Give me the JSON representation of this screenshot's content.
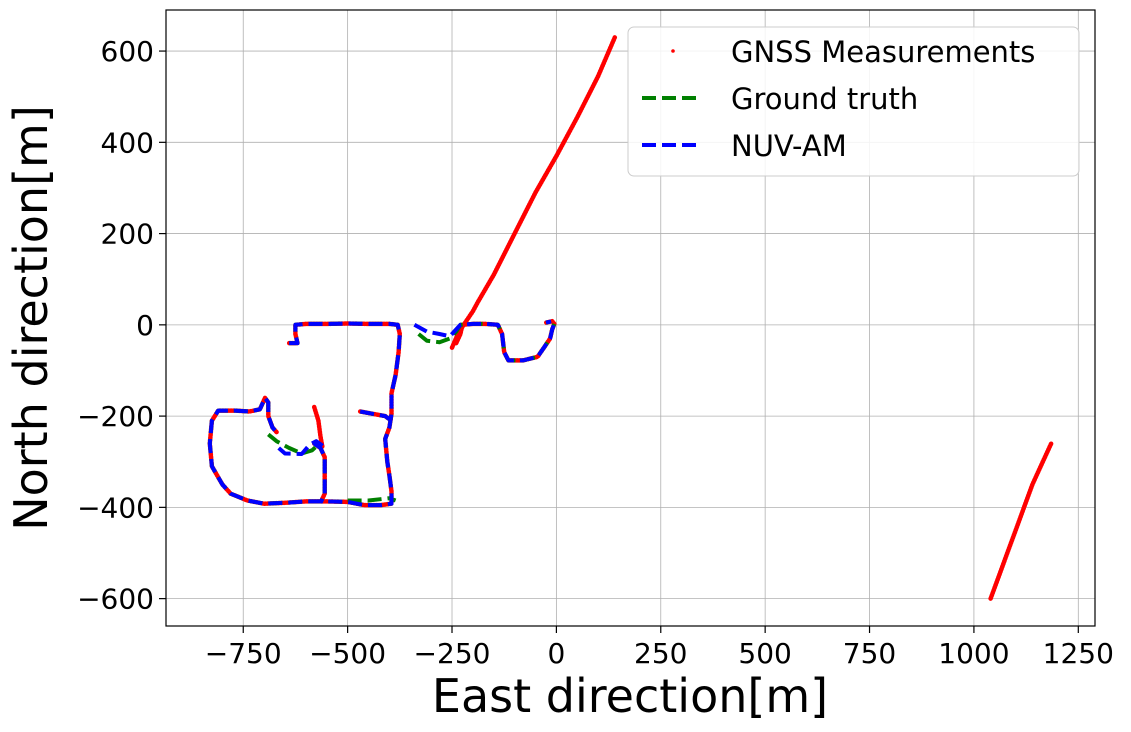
{
  "chart_data": {
    "type": "scatter",
    "xlabel": "East direction[m]",
    "ylabel": "North direction[m]",
    "xlim": [
      -935,
      1290
    ],
    "ylim": [
      -660,
      690
    ],
    "xticks": [
      -750,
      -500,
      -250,
      0,
      250,
      500,
      750,
      1000,
      1250
    ],
    "xtick_labels": [
      "−750",
      "−500",
      "−250",
      "0",
      "250",
      "500",
      "750",
      "1000",
      "1250"
    ],
    "yticks": [
      -600,
      -400,
      -200,
      0,
      200,
      400,
      600
    ],
    "ytick_labels": [
      "−600",
      "−400",
      "−200",
      "0",
      "200",
      "400",
      "600"
    ],
    "grid": true,
    "legend_position": "top-right",
    "series": [
      {
        "name": "GNSS Measurements",
        "style": "points",
        "color": "#ff0000",
        "segments": [
          [
            [
              -640,
              -40
            ],
            [
              -620,
              -40
            ],
            [
              -625,
              -20
            ],
            [
              -625,
              0
            ],
            [
              -600,
              2
            ],
            [
              -550,
              2
            ],
            [
              -500,
              3
            ],
            [
              -450,
              2
            ],
            [
              -400,
              2
            ],
            [
              -380,
              0
            ],
            [
              -375,
              -20
            ],
            [
              -378,
              -60
            ],
            [
              -385,
              -110
            ],
            [
              -395,
              -150
            ],
            [
              -395,
              -195
            ],
            [
              -400,
              -225
            ],
            [
              -410,
              -250
            ],
            [
              -405,
              -300
            ],
            [
              -400,
              -330
            ],
            [
              -395,
              -365
            ],
            [
              -395,
              -392
            ],
            [
              -420,
              -395
            ],
            [
              -460,
              -395
            ],
            [
              -500,
              -388
            ],
            [
              -550,
              -387
            ],
            [
              -600,
              -387
            ],
            [
              -650,
              -390
            ],
            [
              -700,
              -392
            ],
            [
              -740,
              -385
            ],
            [
              -780,
              -370
            ],
            [
              -800,
              -350
            ],
            [
              -825,
              -310
            ],
            [
              -830,
              -260
            ],
            [
              -825,
              -210
            ],
            [
              -810,
              -188
            ],
            [
              -770,
              -188
            ],
            [
              -735,
              -190
            ],
            [
              -710,
              -185
            ],
            [
              -698,
              -160
            ],
            [
              -690,
              -170
            ],
            [
              -690,
              -200
            ],
            [
              -680,
              -225
            ],
            [
              -670,
              -235
            ]
          ],
          [
            [
              -580,
              -180
            ],
            [
              -570,
              -210
            ],
            [
              -565,
              -245
            ],
            [
              -560,
              -270
            ]
          ],
          [
            [
              -470,
              -190
            ],
            [
              -440,
              -195
            ],
            [
              -410,
              -200
            ],
            [
              -395,
              -210
            ]
          ],
          [
            [
              -580,
              -260
            ],
            [
              -565,
              -270
            ],
            [
              -555,
              -290
            ],
            [
              -555,
              -330
            ],
            [
              -555,
              -370
            ],
            [
              -565,
              -390
            ]
          ],
          [
            [
              -240,
              -40
            ],
            [
              -230,
              -20
            ],
            [
              -225,
              0
            ],
            [
              -200,
              2
            ],
            [
              -170,
              2
            ],
            [
              -140,
              0
            ],
            [
              -130,
              -20
            ],
            [
              -125,
              -60
            ],
            [
              -115,
              -78
            ],
            [
              -80,
              -78
            ],
            [
              -45,
              -70
            ],
            [
              -30,
              -50
            ],
            [
              -15,
              -30
            ],
            [
              -10,
              -10
            ],
            [
              -5,
              2
            ],
            [
              -10,
              8
            ],
            [
              -25,
              5
            ]
          ],
          [
            [
              -250,
              -50
            ],
            [
              -236,
              -20
            ],
            [
              -222,
              0
            ],
            [
              -200,
              30
            ],
            [
              -188,
              50
            ],
            [
              -150,
              110
            ],
            [
              -100,
              200
            ],
            [
              -50,
              290
            ],
            [
              0,
              370
            ],
            [
              50,
              455
            ],
            [
              100,
              545
            ],
            [
              140,
              630
            ]
          ],
          [
            [
              1040,
              -600
            ],
            [
              1060,
              -550
            ],
            [
              1080,
              -500
            ],
            [
              1100,
              -450
            ],
            [
              1120,
              -400
            ],
            [
              1140,
              -350
            ],
            [
              1160,
              -310
            ],
            [
              1185,
              -260
            ]
          ]
        ]
      },
      {
        "name": "Ground truth",
        "style": "dashed",
        "color": "#008000",
        "segments": [
          [
            [
              -640,
              -40
            ],
            [
              -620,
              -40
            ],
            [
              -625,
              -20
            ],
            [
              -625,
              0
            ],
            [
              -600,
              2
            ],
            [
              -550,
              2
            ],
            [
              -500,
              3
            ],
            [
              -450,
              2
            ],
            [
              -400,
              2
            ],
            [
              -380,
              0
            ],
            [
              -375,
              -20
            ],
            [
              -378,
              -60
            ],
            [
              -385,
              -110
            ],
            [
              -395,
              -150
            ],
            [
              -395,
              -195
            ],
            [
              -400,
              -225
            ],
            [
              -410,
              -250
            ],
            [
              -405,
              -300
            ],
            [
              -400,
              -330
            ],
            [
              -395,
              -365
            ],
            [
              -395,
              -392
            ],
            [
              -420,
              -395
            ],
            [
              -460,
              -395
            ],
            [
              -500,
              -388
            ],
            [
              -550,
              -387
            ],
            [
              -600,
              -387
            ],
            [
              -650,
              -390
            ],
            [
              -700,
              -392
            ],
            [
              -740,
              -385
            ],
            [
              -780,
              -370
            ],
            [
              -800,
              -350
            ],
            [
              -825,
              -310
            ],
            [
              -830,
              -260
            ],
            [
              -825,
              -210
            ],
            [
              -810,
              -188
            ],
            [
              -770,
              -188
            ],
            [
              -735,
              -190
            ],
            [
              -710,
              -185
            ],
            [
              -698,
              -160
            ],
            [
              -690,
              -170
            ],
            [
              -690,
              -200
            ],
            [
              -680,
              -225
            ],
            [
              -670,
              -235
            ]
          ],
          [
            [
              -690,
              -240
            ],
            [
              -670,
              -255
            ],
            [
              -640,
              -270
            ],
            [
              -610,
              -282
            ],
            [
              -585,
              -275
            ],
            [
              -570,
              -262
            ]
          ],
          [
            [
              -470,
              -190
            ],
            [
              -440,
              -195
            ],
            [
              -410,
              -200
            ],
            [
              -395,
              -210
            ]
          ],
          [
            [
              -580,
              -260
            ],
            [
              -565,
              -270
            ],
            [
              -555,
              -290
            ],
            [
              -555,
              -330
            ],
            [
              -555,
              -370
            ],
            [
              -565,
              -390
            ]
          ],
          [
            [
              -330,
              -20
            ],
            [
              -310,
              -35
            ],
            [
              -280,
              -38
            ],
            [
              -255,
              -30
            ],
            [
              -240,
              -15
            ],
            [
              -230,
              0
            ],
            [
              -200,
              2
            ],
            [
              -170,
              2
            ],
            [
              -140,
              0
            ],
            [
              -130,
              -20
            ],
            [
              -125,
              -60
            ],
            [
              -115,
              -78
            ],
            [
              -80,
              -78
            ],
            [
              -45,
              -70
            ],
            [
              -30,
              -50
            ],
            [
              -15,
              -30
            ],
            [
              -10,
              -10
            ],
            [
              -5,
              2
            ],
            [
              -10,
              8
            ],
            [
              -25,
              5
            ]
          ],
          [
            [
              -500,
              -385
            ],
            [
              -450,
              -385
            ],
            [
              -400,
              -380
            ],
            [
              -385,
              -385
            ]
          ]
        ]
      },
      {
        "name": "NUV-AM",
        "style": "dashed",
        "color": "#0000ff",
        "segments": [
          [
            [
              -640,
              -40
            ],
            [
              -620,
              -40
            ],
            [
              -625,
              -20
            ],
            [
              -625,
              0
            ],
            [
              -600,
              2
            ],
            [
              -550,
              2
            ],
            [
              -500,
              3
            ],
            [
              -450,
              2
            ],
            [
              -400,
              2
            ],
            [
              -380,
              0
            ],
            [
              -375,
              -20
            ],
            [
              -378,
              -60
            ],
            [
              -385,
              -110
            ],
            [
              -395,
              -150
            ],
            [
              -395,
              -195
            ],
            [
              -400,
              -225
            ],
            [
              -410,
              -250
            ],
            [
              -405,
              -300
            ],
            [
              -400,
              -330
            ],
            [
              -395,
              -365
            ],
            [
              -395,
              -392
            ],
            [
              -420,
              -395
            ],
            [
              -460,
              -395
            ],
            [
              -500,
              -388
            ],
            [
              -550,
              -387
            ],
            [
              -600,
              -387
            ],
            [
              -650,
              -390
            ],
            [
              -700,
              -392
            ],
            [
              -740,
              -385
            ],
            [
              -780,
              -370
            ],
            [
              -800,
              -350
            ],
            [
              -825,
              -310
            ],
            [
              -830,
              -260
            ],
            [
              -825,
              -210
            ],
            [
              -810,
              -188
            ],
            [
              -770,
              -188
            ],
            [
              -735,
              -190
            ],
            [
              -710,
              -185
            ],
            [
              -698,
              -160
            ],
            [
              -690,
              -170
            ],
            [
              -690,
              -200
            ],
            [
              -680,
              -225
            ],
            [
              -670,
              -235
            ]
          ],
          [
            [
              -665,
              -270
            ],
            [
              -650,
              -282
            ],
            [
              -610,
              -283
            ],
            [
              -590,
              -262
            ],
            [
              -575,
              -255
            ],
            [
              -560,
              -265
            ]
          ],
          [
            [
              -470,
              -190
            ],
            [
              -440,
              -195
            ],
            [
              -410,
              -200
            ],
            [
              -395,
              -210
            ]
          ],
          [
            [
              -580,
              -260
            ],
            [
              -565,
              -270
            ],
            [
              -555,
              -290
            ],
            [
              -555,
              -330
            ],
            [
              -555,
              -370
            ],
            [
              -565,
              -390
            ]
          ],
          [
            [
              -340,
              0
            ],
            [
              -310,
              -15
            ],
            [
              -280,
              -20
            ],
            [
              -255,
              -25
            ],
            [
              -240,
              -10
            ],
            [
              -230,
              0
            ],
            [
              -200,
              2
            ],
            [
              -170,
              2
            ],
            [
              -140,
              0
            ],
            [
              -130,
              -20
            ],
            [
              -125,
              -60
            ],
            [
              -115,
              -78
            ],
            [
              -80,
              -78
            ],
            [
              -45,
              -70
            ],
            [
              -30,
              -50
            ],
            [
              -15,
              -30
            ],
            [
              -10,
              -10
            ],
            [
              -5,
              2
            ],
            [
              -10,
              8
            ],
            [
              -25,
              5
            ]
          ]
        ]
      }
    ]
  }
}
